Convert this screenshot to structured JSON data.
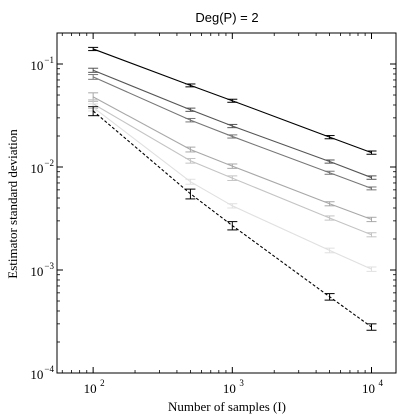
{
  "chart_data": {
    "type": "line",
    "title": "Deg(P) = 2",
    "xlabel": "Number of samples (I)",
    "ylabel": "Estimator standard deviation",
    "xscale": "log",
    "yscale": "log",
    "xlim": [
      55,
      15000
    ],
    "ylim": [
      0.0001,
      0.2
    ],
    "legend": "none",
    "grid": false,
    "xticks": [
      {
        "base": "10",
        "exp": "2",
        "value": 100
      },
      {
        "base": "10",
        "exp": "3",
        "value": 1000
      },
      {
        "base": "10",
        "exp": "4",
        "value": 10000
      }
    ],
    "yticks": [
      {
        "base": "10",
        "exp": "−4",
        "value": 0.0001
      },
      {
        "base": "10",
        "exp": "−3",
        "value": 0.001
      },
      {
        "base": "10",
        "exp": "−2",
        "value": 0.01
      },
      {
        "base": "10",
        "exp": "−1",
        "value": 0.1
      }
    ],
    "series": [
      {
        "color": "#000000",
        "dash": "solid",
        "error_bars": true,
        "points": [
          [
            100,
            0.14
          ],
          [
            500,
            0.062
          ],
          [
            1000,
            0.044
          ],
          [
            5000,
            0.0195
          ],
          [
            10000,
            0.0138
          ]
        ],
        "err": [
          0.005,
          0.002,
          0.0015,
          0.0007,
          0.0005
        ]
      },
      {
        "color": "#555555",
        "dash": "solid",
        "error_bars": true,
        "points": [
          [
            100,
            0.087
          ],
          [
            500,
            0.036
          ],
          [
            1000,
            0.025
          ],
          [
            5000,
            0.0113
          ],
          [
            10000,
            0.0079
          ]
        ],
        "err": [
          0.004,
          0.0013,
          0.0009,
          0.0004,
          0.0003
        ]
      },
      {
        "color": "#777777",
        "dash": "solid",
        "error_bars": true,
        "points": [
          [
            100,
            0.075
          ],
          [
            500,
            0.0285
          ],
          [
            1000,
            0.0198
          ],
          [
            5000,
            0.0088
          ],
          [
            10000,
            0.0062
          ]
        ],
        "err": [
          0.004,
          0.0011,
          0.0007,
          0.0003,
          0.0002
        ]
      },
      {
        "color": "#a8a8a8",
        "dash": "solid",
        "error_bars": true,
        "points": [
          [
            100,
            0.048
          ],
          [
            500,
            0.0148
          ],
          [
            1000,
            0.0102
          ],
          [
            5000,
            0.0044
          ],
          [
            10000,
            0.0031
          ]
        ],
        "err": [
          0.0045,
          0.0008,
          0.0005,
          0.0002,
          0.00015
        ]
      },
      {
        "color": "#c4c4c4",
        "dash": "solid",
        "error_bars": true,
        "points": [
          [
            100,
            0.041
          ],
          [
            500,
            0.0115
          ],
          [
            1000,
            0.0078
          ],
          [
            5000,
            0.0032
          ],
          [
            10000,
            0.0022
          ]
        ],
        "err": [
          0.004,
          0.0006,
          0.0004,
          0.00015,
          0.0001
        ]
      },
      {
        "color": "#e0e0e0",
        "dash": "solid",
        "error_bars": true,
        "points": [
          [
            100,
            0.038
          ],
          [
            500,
            0.0072
          ],
          [
            1000,
            0.0042
          ],
          [
            5000,
            0.00155
          ],
          [
            10000,
            0.00102
          ]
        ],
        "err": [
          0.003,
          0.0004,
          0.0002,
          8e-05,
          5e-05
        ]
      },
      {
        "color": "#000000",
        "dash": "dashed",
        "error_bars": true,
        "points": [
          [
            100,
            0.035
          ],
          [
            500,
            0.0055
          ],
          [
            1000,
            0.0027
          ],
          [
            5000,
            0.00055
          ],
          [
            10000,
            0.00028
          ]
        ],
        "err": [
          0.0035,
          0.0006,
          0.00025,
          4e-05,
          2e-05
        ]
      }
    ]
  }
}
